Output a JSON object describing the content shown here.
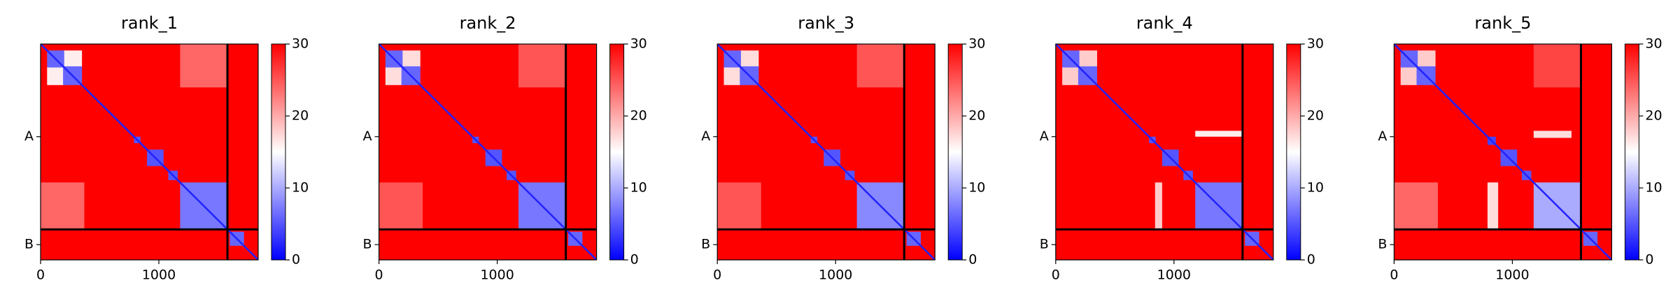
{
  "chart_data": [
    {
      "type": "heatmap",
      "title": "rank_1",
      "xlim": [
        0,
        1840
      ],
      "ylim": [
        1840,
        0
      ],
      "xticks": [
        0,
        1000
      ],
      "yticks": [
        {
          "value": 790,
          "label": "A"
        },
        {
          "value": 1710,
          "label": "B"
        }
      ],
      "chain_boundaries": [
        1580
      ],
      "background": 30,
      "diagonal": 2,
      "clim": [
        0,
        30
      ],
      "cticks": [
        0,
        10,
        20,
        30
      ],
      "colormap": [
        "#0000ff",
        "#ffffff",
        "#ff0000"
      ],
      "regions": [
        {
          "rows": [
            0,
            370
          ],
          "cols": [
            1180,
            1580
          ],
          "value": 24
        },
        {
          "rows": [
            1180,
            1580
          ],
          "cols": [
            0,
            370
          ],
          "value": 24
        },
        {
          "rows": [
            55,
            200
          ],
          "cols": [
            190,
            350
          ],
          "value": 16
        },
        {
          "rows": [
            190,
            350
          ],
          "cols": [
            55,
            200
          ],
          "value": 16
        },
        {
          "rows": [
            55,
            200
          ],
          "cols": [
            55,
            200
          ],
          "value": 6
        },
        {
          "rows": [
            190,
            350
          ],
          "cols": [
            190,
            350
          ],
          "value": 6
        },
        {
          "rows": [
            790,
            845
          ],
          "cols": [
            790,
            845
          ],
          "value": 5
        },
        {
          "rows": [
            900,
            1040
          ],
          "cols": [
            900,
            1040
          ],
          "value": 5
        },
        {
          "rows": [
            1080,
            1160
          ],
          "cols": [
            1080,
            1160
          ],
          "value": 5
        },
        {
          "rows": [
            1180,
            1580
          ],
          "cols": [
            1180,
            1580
          ],
          "value": 7
        },
        {
          "rows": [
            1600,
            1720
          ],
          "cols": [
            1600,
            1720
          ],
          "value": 6
        }
      ]
    },
    {
      "type": "heatmap",
      "title": "rank_2",
      "xlim": [
        0,
        1840
      ],
      "ylim": [
        1840,
        0
      ],
      "xticks": [
        0,
        1000
      ],
      "yticks": [
        {
          "value": 790,
          "label": "A"
        },
        {
          "value": 1710,
          "label": "B"
        }
      ],
      "chain_boundaries": [
        1580
      ],
      "background": 30,
      "diagonal": 2,
      "clim": [
        0,
        30
      ],
      "cticks": [
        0,
        10,
        20,
        30
      ],
      "colormap": [
        "#0000ff",
        "#ffffff",
        "#ff0000"
      ],
      "regions": [
        {
          "rows": [
            0,
            370
          ],
          "cols": [
            1180,
            1580
          ],
          "value": 25
        },
        {
          "rows": [
            1180,
            1580
          ],
          "cols": [
            0,
            370
          ],
          "value": 25
        },
        {
          "rows": [
            55,
            200
          ],
          "cols": [
            190,
            350
          ],
          "value": 17
        },
        {
          "rows": [
            190,
            350
          ],
          "cols": [
            55,
            200
          ],
          "value": 17
        },
        {
          "rows": [
            55,
            200
          ],
          "cols": [
            55,
            200
          ],
          "value": 6
        },
        {
          "rows": [
            190,
            350
          ],
          "cols": [
            190,
            350
          ],
          "value": 6
        },
        {
          "rows": [
            790,
            845
          ],
          "cols": [
            790,
            845
          ],
          "value": 5
        },
        {
          "rows": [
            900,
            1040
          ],
          "cols": [
            900,
            1040
          ],
          "value": 5
        },
        {
          "rows": [
            1080,
            1160
          ],
          "cols": [
            1080,
            1160
          ],
          "value": 5
        },
        {
          "rows": [
            1180,
            1580
          ],
          "cols": [
            1180,
            1580
          ],
          "value": 7
        },
        {
          "rows": [
            1600,
            1720
          ],
          "cols": [
            1600,
            1720
          ],
          "value": 6
        }
      ]
    },
    {
      "type": "heatmap",
      "title": "rank_3",
      "xlim": [
        0,
        1840
      ],
      "ylim": [
        1840,
        0
      ],
      "xticks": [
        0,
        1000
      ],
      "yticks": [
        {
          "value": 790,
          "label": "A"
        },
        {
          "value": 1710,
          "label": "B"
        }
      ],
      "chain_boundaries": [
        1580
      ],
      "background": 30,
      "diagonal": 2,
      "clim": [
        0,
        30
      ],
      "cticks": [
        0,
        10,
        20,
        30
      ],
      "colormap": [
        "#0000ff",
        "#ffffff",
        "#ff0000"
      ],
      "regions": [
        {
          "rows": [
            0,
            370
          ],
          "cols": [
            1180,
            1580
          ],
          "value": 25
        },
        {
          "rows": [
            1180,
            1580
          ],
          "cols": [
            0,
            370
          ],
          "value": 25
        },
        {
          "rows": [
            55,
            200
          ],
          "cols": [
            190,
            350
          ],
          "value": 17
        },
        {
          "rows": [
            190,
            350
          ],
          "cols": [
            55,
            200
          ],
          "value": 17
        },
        {
          "rows": [
            55,
            200
          ],
          "cols": [
            55,
            200
          ],
          "value": 6
        },
        {
          "rows": [
            190,
            350
          ],
          "cols": [
            190,
            350
          ],
          "value": 6
        },
        {
          "rows": [
            790,
            845
          ],
          "cols": [
            790,
            845
          ],
          "value": 5
        },
        {
          "rows": [
            900,
            1040
          ],
          "cols": [
            900,
            1040
          ],
          "value": 5
        },
        {
          "rows": [
            1080,
            1160
          ],
          "cols": [
            1080,
            1160
          ],
          "value": 5
        },
        {
          "rows": [
            1180,
            1580
          ],
          "cols": [
            1180,
            1580
          ],
          "value": 8
        },
        {
          "rows": [
            1600,
            1720
          ],
          "cols": [
            1600,
            1720
          ],
          "value": 6
        }
      ]
    },
    {
      "type": "heatmap",
      "title": "rank_4",
      "xlim": [
        0,
        1840
      ],
      "ylim": [
        1840,
        0
      ],
      "xticks": [
        0,
        1000
      ],
      "yticks": [
        {
          "value": 790,
          "label": "A"
        },
        {
          "value": 1710,
          "label": "B"
        }
      ],
      "chain_boundaries": [
        1580
      ],
      "background": 30,
      "diagonal": 2,
      "clim": [
        0,
        30
      ],
      "cticks": [
        0,
        10,
        20,
        30
      ],
      "colormap": [
        "#0000ff",
        "#ffffff",
        "#ff0000"
      ],
      "regions": [
        {
          "rows": [
            740,
            790
          ],
          "cols": [
            1180,
            1580
          ],
          "value": 16
        },
        {
          "rows": [
            1180,
            1580
          ],
          "cols": [
            840,
            900
          ],
          "value": 18
        },
        {
          "rows": [
            55,
            200
          ],
          "cols": [
            190,
            350
          ],
          "value": 18
        },
        {
          "rows": [
            190,
            350
          ],
          "cols": [
            55,
            200
          ],
          "value": 18
        },
        {
          "rows": [
            55,
            200
          ],
          "cols": [
            55,
            200
          ],
          "value": 6
        },
        {
          "rows": [
            190,
            350
          ],
          "cols": [
            190,
            350
          ],
          "value": 6
        },
        {
          "rows": [
            790,
            845
          ],
          "cols": [
            790,
            845
          ],
          "value": 5
        },
        {
          "rows": [
            900,
            1040
          ],
          "cols": [
            900,
            1040
          ],
          "value": 5
        },
        {
          "rows": [
            1080,
            1160
          ],
          "cols": [
            1080,
            1160
          ],
          "value": 5
        },
        {
          "rows": [
            1180,
            1580
          ],
          "cols": [
            1180,
            1580
          ],
          "value": 7
        },
        {
          "rows": [
            1600,
            1720
          ],
          "cols": [
            1600,
            1720
          ],
          "value": 6
        }
      ]
    },
    {
      "type": "heatmap",
      "title": "rank_5",
      "xlim": [
        0,
        1840
      ],
      "ylim": [
        1840,
        0
      ],
      "xticks": [
        0,
        1000
      ],
      "yticks": [
        {
          "value": 790,
          "label": "A"
        },
        {
          "value": 1710,
          "label": "B"
        }
      ],
      "chain_boundaries": [
        1580
      ],
      "background": 30,
      "diagonal": 2,
      "clim": [
        0,
        30
      ],
      "cticks": [
        0,
        10,
        20,
        30
      ],
      "colormap": [
        "#0000ff",
        "#ffffff",
        "#ff0000"
      ],
      "regions": [
        {
          "rows": [
            0,
            370
          ],
          "cols": [
            1180,
            1580
          ],
          "value": 26
        },
        {
          "rows": [
            1180,
            1580
          ],
          "cols": [
            0,
            370
          ],
          "value": 24
        },
        {
          "rows": [
            740,
            800
          ],
          "cols": [
            1180,
            1500
          ],
          "value": 17
        },
        {
          "rows": [
            1180,
            1580
          ],
          "cols": [
            790,
            880
          ],
          "value": 17
        },
        {
          "rows": [
            55,
            200
          ],
          "cols": [
            190,
            350
          ],
          "value": 18
        },
        {
          "rows": [
            190,
            350
          ],
          "cols": [
            55,
            200
          ],
          "value": 18
        },
        {
          "rows": [
            55,
            200
          ],
          "cols": [
            55,
            200
          ],
          "value": 6
        },
        {
          "rows": [
            190,
            350
          ],
          "cols": [
            190,
            350
          ],
          "value": 6
        },
        {
          "rows": [
            790,
            860
          ],
          "cols": [
            790,
            860
          ],
          "value": 4
        },
        {
          "rows": [
            900,
            1040
          ],
          "cols": [
            900,
            1040
          ],
          "value": 5
        },
        {
          "rows": [
            1080,
            1160
          ],
          "cols": [
            1080,
            1160
          ],
          "value": 5
        },
        {
          "rows": [
            1180,
            1580
          ],
          "cols": [
            1180,
            1580
          ],
          "value": 10
        },
        {
          "rows": [
            1600,
            1720
          ],
          "cols": [
            1600,
            1720
          ],
          "value": 6
        }
      ]
    }
  ]
}
